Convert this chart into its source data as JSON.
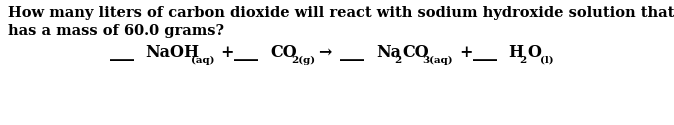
{
  "background_color": "#ffffff",
  "text_color": "#000000",
  "question_line1": "How many liters of carbon dioxide will react with sodium hydroxide solution that",
  "question_line2": "has a mass of 60.0 grams?",
  "font_family": "DejaVu Serif",
  "font_size_q": 10.5,
  "font_size_eq": 11.5,
  "font_size_sub": 7.5,
  "fig_width": 6.74,
  "fig_height": 1.25,
  "dpi": 100
}
